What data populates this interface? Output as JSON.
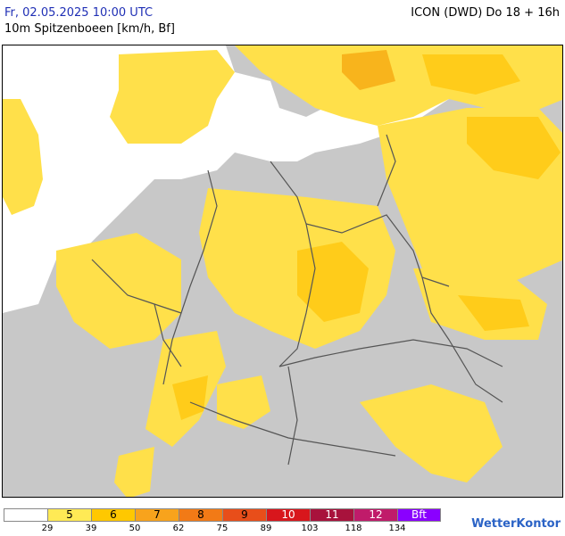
{
  "header": {
    "timestamp": "Fr, 02.05.2025 10:00 UTC",
    "subtitle": "10m Spitzenboeen [km/h, Bf]",
    "model_run": "ICON (DWD) Do 18 + 16h"
  },
  "legend": {
    "cells": [
      {
        "label": "",
        "color": "#ffffff"
      },
      {
        "label": "5",
        "color": "#ffea55"
      },
      {
        "label": "6",
        "color": "#ffc800"
      },
      {
        "label": "7",
        "color": "#f8a31c"
      },
      {
        "label": "8",
        "color": "#f27a16"
      },
      {
        "label": "9",
        "color": "#e84e1a"
      },
      {
        "label": "10",
        "color": "#d8161c"
      },
      {
        "label": "11",
        "color": "#a8123c"
      },
      {
        "label": "12",
        "color": "#c01b6a"
      },
      {
        "label": "Bft",
        "color": "#8a00ff"
      }
    ],
    "ticks": [
      "29",
      "39",
      "50",
      "62",
      "75",
      "89",
      "103",
      "118",
      "134"
    ]
  },
  "logo": {
    "text": "WetterKontor"
  },
  "colors": {
    "land": "#c8c8c8",
    "sea": "#ffffff",
    "yellow_light": "#ffe04a",
    "yellow_dark": "#ffcc1a",
    "border": "#555555"
  }
}
